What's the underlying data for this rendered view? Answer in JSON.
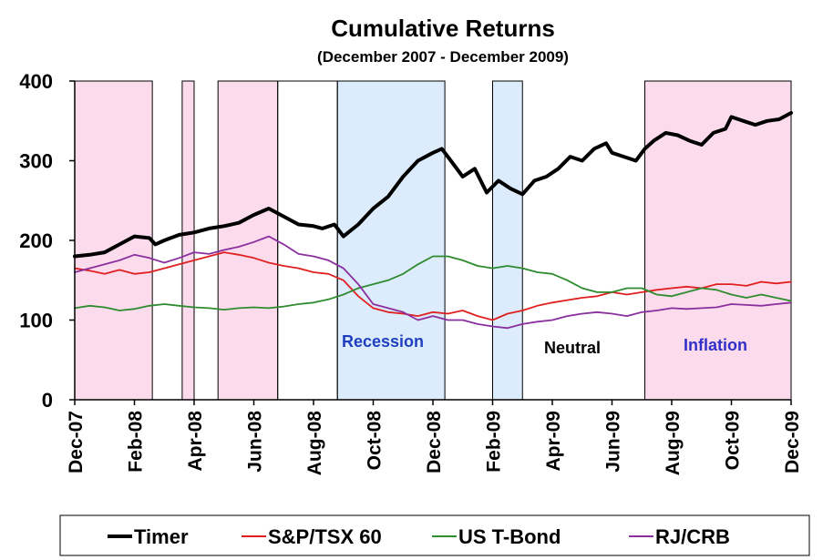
{
  "chart_data": {
    "type": "line",
    "title": "Cumulative Returns",
    "subtitle": "(December 2007 - December 2009)",
    "xlabel": "",
    "ylabel": "",
    "ylim": [
      0,
      400
    ],
    "yticks": [
      0,
      100,
      200,
      300,
      400
    ],
    "xlim": [
      0,
      24
    ],
    "xtick_labels": [
      "Dec-07",
      "Feb-08",
      "Apr-08",
      "Jun-08",
      "Aug-08",
      "Oct-08",
      "Dec-08",
      "Feb-09",
      "Apr-09",
      "Jun-09",
      "Aug-09",
      "Oct-09",
      "Dec-09"
    ],
    "xtick_positions": [
      0,
      2,
      4,
      6,
      8,
      10,
      12,
      14,
      16,
      18,
      20,
      22,
      24
    ],
    "regimes": [
      {
        "type": "inflation",
        "start": 0.0,
        "end": 2.6,
        "color": "#fcdcec",
        "label": ""
      },
      {
        "type": "inflation",
        "start": 3.6,
        "end": 4.0,
        "color": "#fcdcec",
        "label": ""
      },
      {
        "type": "inflation",
        "start": 4.8,
        "end": 6.8,
        "color": "#fcdcec",
        "label": ""
      },
      {
        "type": "recession",
        "start": 8.8,
        "end": 12.4,
        "color": "#dcecfc",
        "label": "Recession",
        "label_color": "#1f3fbf"
      },
      {
        "type": "recession",
        "start": 14.0,
        "end": 15.0,
        "color": "#dcecfc",
        "label": ""
      },
      {
        "type": "inflation",
        "start": 19.1,
        "end": 24.0,
        "color": "#fcdcec",
        "label": "Inflation",
        "label_color": "#3030c8"
      },
      {
        "type": "neutral",
        "start": 15.0,
        "end": 19.1,
        "color": "none",
        "label": "Neutral",
        "label_color": "#000000"
      }
    ],
    "regime_borders": [
      [
        0.0,
        2.6
      ],
      [
        3.6,
        4.0
      ],
      [
        4.8,
        6.8
      ],
      [
        6.8,
        8.8
      ],
      [
        8.8,
        12.4
      ],
      [
        14.0,
        15.0
      ],
      [
        19.1,
        24.0
      ]
    ],
    "series": [
      {
        "name": "Timer",
        "color": "#000000",
        "width": 4,
        "x": [
          0,
          0.5,
          1,
          1.5,
          2,
          2.5,
          2.7,
          3,
          3.5,
          4,
          4.5,
          5,
          5.5,
          6,
          6.5,
          7,
          7.5,
          8,
          8.3,
          8.7,
          9,
          9.5,
          10,
          10.5,
          11,
          11.5,
          12,
          12.3,
          12.6,
          13,
          13.4,
          13.8,
          14.2,
          14.6,
          15,
          15.4,
          15.8,
          16.2,
          16.6,
          17,
          17.4,
          17.8,
          18,
          18.4,
          18.8,
          19.1,
          19.4,
          19.8,
          20.2,
          20.6,
          21,
          21.4,
          21.8,
          22,
          22.4,
          22.8,
          23.2,
          23.6,
          24
        ],
        "y": [
          180,
          182,
          185,
          195,
          205,
          203,
          195,
          200,
          207,
          210,
          215,
          218,
          222,
          232,
          240,
          230,
          220,
          218,
          215,
          220,
          205,
          220,
          240,
          255,
          280,
          300,
          310,
          315,
          300,
          280,
          290,
          260,
          275,
          265,
          258,
          275,
          280,
          290,
          305,
          300,
          315,
          322,
          310,
          305,
          300,
          315,
          325,
          335,
          332,
          325,
          320,
          335,
          340,
          355,
          350,
          345,
          350,
          352,
          360
        ]
      },
      {
        "name": "S&P/TSX 60",
        "color": "#e02020",
        "width": 1.8,
        "x": [
          0,
          0.5,
          1,
          1.5,
          2,
          2.5,
          3,
          3.5,
          4,
          4.5,
          5,
          5.5,
          6,
          6.5,
          7,
          7.5,
          8,
          8.5,
          9,
          9.5,
          10,
          10.5,
          11,
          11.5,
          12,
          12.5,
          13,
          13.5,
          14,
          14.5,
          15,
          15.5,
          16,
          16.5,
          17,
          17.5,
          18,
          18.5,
          19,
          19.5,
          20,
          20.5,
          21,
          21.5,
          22,
          22.5,
          23,
          23.5,
          24
        ],
        "y": [
          165,
          162,
          158,
          163,
          158,
          160,
          165,
          170,
          175,
          180,
          185,
          182,
          178,
          172,
          168,
          165,
          160,
          158,
          150,
          130,
          115,
          110,
          108,
          105,
          110,
          108,
          112,
          105,
          100,
          108,
          112,
          118,
          122,
          125,
          128,
          130,
          135,
          132,
          135,
          138,
          140,
          142,
          140,
          145,
          145,
          143,
          148,
          146,
          148
        ]
      },
      {
        "name": "US T-Bond",
        "color": "#2e8b2e",
        "width": 1.8,
        "x": [
          0,
          0.5,
          1,
          1.5,
          2,
          2.5,
          3,
          3.5,
          4,
          4.5,
          5,
          5.5,
          6,
          6.5,
          7,
          7.5,
          8,
          8.5,
          9,
          9.5,
          10,
          10.5,
          11,
          11.5,
          12,
          12.5,
          13,
          13.5,
          14,
          14.5,
          15,
          15.5,
          16,
          16.5,
          17,
          17.5,
          18,
          18.5,
          19,
          19.5,
          20,
          20.5,
          21,
          21.5,
          22,
          22.5,
          23,
          23.5,
          24
        ],
        "y": [
          115,
          118,
          116,
          112,
          114,
          118,
          120,
          118,
          116,
          115,
          113,
          115,
          116,
          115,
          117,
          120,
          122,
          126,
          132,
          140,
          145,
          150,
          158,
          170,
          180,
          180,
          175,
          168,
          165,
          168,
          165,
          160,
          158,
          150,
          140,
          135,
          135,
          140,
          140,
          132,
          130,
          135,
          140,
          138,
          132,
          128,
          132,
          128,
          124
        ]
      },
      {
        "name": "RJ/CRB",
        "color": "#8b2f9f",
        "width": 1.8,
        "x": [
          0,
          0.5,
          1,
          1.5,
          2,
          2.5,
          3,
          3.5,
          4,
          4.5,
          5,
          5.5,
          6,
          6.5,
          7,
          7.5,
          8,
          8.5,
          9,
          9.5,
          10,
          10.5,
          11,
          11.5,
          12,
          12.5,
          13,
          13.5,
          14,
          14.5,
          15,
          15.5,
          16,
          16.5,
          17,
          17.5,
          18,
          18.5,
          19,
          19.5,
          20,
          20.5,
          21,
          21.5,
          22,
          22.5,
          23,
          23.5,
          24
        ],
        "y": [
          160,
          165,
          170,
          175,
          182,
          178,
          172,
          178,
          185,
          183,
          188,
          192,
          198,
          205,
          195,
          183,
          180,
          175,
          165,
          145,
          120,
          115,
          110,
          100,
          105,
          100,
          100,
          95,
          92,
          90,
          95,
          98,
          100,
          105,
          108,
          110,
          108,
          105,
          110,
          112,
          115,
          114,
          115,
          116,
          120,
          119,
          118,
          120,
          122
        ]
      }
    ],
    "legend": [
      "Timer",
      "S&P/TSX 60",
      "US T-Bond",
      "RJ/CRB"
    ],
    "legend_position": "bottom"
  }
}
